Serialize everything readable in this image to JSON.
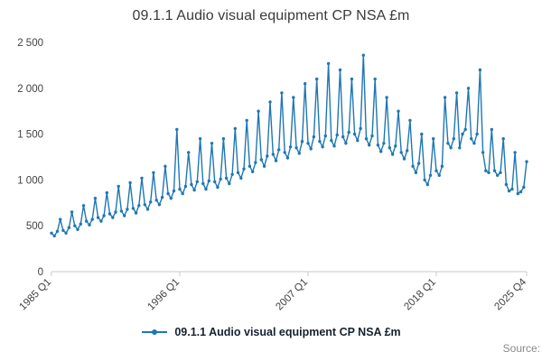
{
  "title": "09.1.1 Audio visual equipment CP NSA £m",
  "legend": {
    "label": "09.1.1 Audio visual equipment CP NSA £m"
  },
  "source_label": "Source:",
  "chart_data": {
    "type": "line",
    "title": "09.1.1 Audio visual equipment CP NSA £m",
    "xlabel": "",
    "ylabel": "",
    "frequency": "quarterly",
    "start_period": "1985 Q1",
    "end_period": "2025 Q4",
    "ylim": [
      0,
      2500
    ],
    "y_ticks": [
      0,
      500,
      1000,
      1500,
      2000,
      2500
    ],
    "y_tick_labels": [
      "0",
      "500",
      "1 000",
      "1 500",
      "2 000",
      "2 500"
    ],
    "x_tick_labels": [
      "1985 Q1",
      "1996 Q1",
      "2007 Q1",
      "2018 Q1",
      "2025 Q4"
    ],
    "x_tick_indices": [
      0,
      44,
      88,
      132,
      163
    ],
    "grid": false,
    "legend_position": "bottom",
    "line_color": "#1f77b4",
    "marker": "circle",
    "values": [
      420,
      390,
      440,
      570,
      450,
      420,
      480,
      650,
      500,
      460,
      520,
      720,
      550,
      510,
      570,
      800,
      590,
      550,
      610,
      860,
      630,
      590,
      650,
      930,
      660,
      610,
      680,
      970,
      690,
      640,
      720,
      1020,
      730,
      680,
      760,
      1080,
      780,
      730,
      810,
      1150,
      850,
      800,
      880,
      1550,
      900,
      850,
      930,
      1300,
      950,
      890,
      980,
      1450,
      960,
      900,
      990,
      1400,
      980,
      920,
      1010,
      1450,
      1020,
      960,
      1060,
      1560,
      1080,
      1020,
      1120,
      1650,
      1150,
      1090,
      1190,
      1750,
      1220,
      1150,
      1260,
      1850,
      1280,
      1210,
      1330,
      1950,
      1300,
      1240,
      1360,
      1900,
      1350,
      1290,
      1420,
      2050,
      1400,
      1340,
      1470,
      2100,
      1420,
      1360,
      1480,
      2270,
      1430,
      1370,
      1490,
      2200,
      1470,
      1400,
      1520,
      2100,
      1500,
      1430,
      1560,
      2360,
      1450,
      1380,
      1480,
      2100,
      1380,
      1310,
      1400,
      1900,
      1350,
      1280,
      1370,
      1750,
      1300,
      1230,
      1320,
      1650,
      1150,
      1080,
      1180,
      1500,
      1000,
      950,
      1050,
      1450,
      1100,
      1050,
      1150,
      1900,
      1400,
      1350,
      1450,
      1950,
      1350,
      1500,
      1550,
      2000,
      1450,
      1400,
      1500,
      2200,
      1300,
      1100,
      1080,
      1550,
      1100,
      1050,
      1080,
      1450,
      950,
      880,
      900,
      1300,
      850,
      870,
      920,
      1200
    ]
  }
}
